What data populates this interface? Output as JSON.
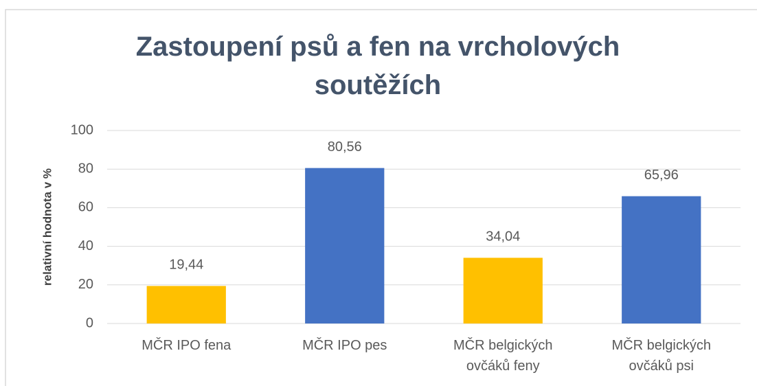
{
  "chart_data": {
    "type": "bar",
    "title": "Zastoupení psů a fen na vrcholových soutěžích",
    "y_label": "relativní hodnota v %",
    "categories": [
      "MČR IPO fena",
      "MČR IPO pes",
      "MČR belgických ovčáků feny",
      "MČR belgických ovčáků psi"
    ],
    "values": [
      19.44,
      80.56,
      34.04,
      65.96
    ],
    "value_labels": [
      "19,44",
      "80,56",
      "34,04",
      "65,96"
    ],
    "colors": [
      "#ffc000",
      "#4472c4",
      "#ffc000",
      "#4472c4"
    ],
    "ylim": [
      0,
      100
    ],
    "yticks": [
      0,
      20,
      40,
      60,
      80,
      100
    ],
    "grid": true
  }
}
